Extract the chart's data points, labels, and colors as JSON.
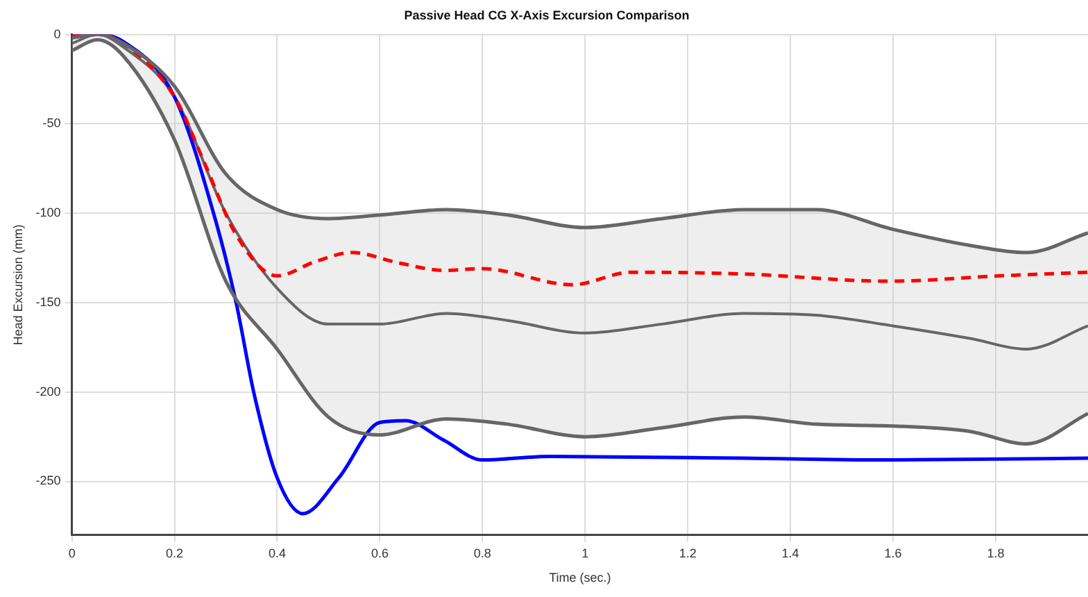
{
  "chart_data": {
    "type": "line",
    "title": "Passive Head CG X-Axis Excursion Comparison",
    "xlabel": "Time (sec.)",
    "ylabel": "Head Excursion (mm)",
    "xlim": [
      0,
      1.98
    ],
    "xticks": [
      0,
      0.2,
      0.4,
      0.6,
      0.8,
      1,
      1.2,
      1.4,
      1.6,
      1.8
    ],
    "ylim": [
      -280,
      0
    ],
    "yticks": [
      -250,
      -200,
      -150,
      -100,
      -50,
      0
    ],
    "grid": true,
    "legend": false,
    "marker": "none",
    "series": [
      {
        "color": "#666666",
        "line_style": "solid",
        "x": [
          0,
          0.05,
          0.1,
          0.2,
          0.3,
          0.4,
          0.5,
          0.6,
          0.73,
          0.85,
          1.0,
          1.15,
          1.31,
          1.45,
          1.6,
          1.75,
          1.86,
          1.98
        ],
        "values": [
          -5,
          0,
          -7,
          -35,
          -100,
          -142,
          -162,
          -162,
          -156,
          -160,
          -167,
          -162,
          -156,
          -157,
          -163,
          -170,
          -176,
          -163
        ],
        "lower": [
          -9,
          -3,
          -12,
          -59,
          -138,
          -176,
          -214,
          -224,
          -215,
          -218,
          -225,
          -220,
          -214,
          -218,
          -219,
          -222,
          -229,
          -212
        ],
        "upper": [
          -2,
          0,
          -5,
          -29,
          -78,
          -98,
          -103,
          -101,
          -98,
          -101,
          -108,
          -103,
          -98,
          -98,
          -109,
          -118,
          -122,
          -111
        ]
      },
      {
        "color": "#666666",
        "line_style": "solid",
        "x": [
          0,
          0.05,
          0.1,
          0.2,
          0.3,
          0.4,
          0.5,
          0.6,
          0.73,
          0.85,
          1.0,
          1.15,
          1.31,
          1.45,
          1.6,
          1.75,
          1.86,
          1.98
        ],
        "values": [
          -9,
          -3,
          -12,
          -59,
          -138,
          -176,
          -214,
          -224,
          -215,
          -218,
          -225,
          -220,
          -214,
          -218,
          -219,
          -222,
          -229,
          -212
        ]
      },
      {
        "color": "#666666",
        "line_style": "solid",
        "x": [
          0,
          0.05,
          0.1,
          0.2,
          0.3,
          0.4,
          0.5,
          0.6,
          0.73,
          0.85,
          1.0,
          1.15,
          1.31,
          1.45,
          1.6,
          1.75,
          1.86,
          1.98
        ],
        "values": [
          -2,
          0,
          -5,
          -29,
          -78,
          -98,
          -103,
          -101,
          -98,
          -101,
          -108,
          -103,
          -98,
          -98,
          -109,
          -118,
          -122,
          -111
        ]
      },
      {
        "color": "#ff0000",
        "line_style": "dashed",
        "x": [
          0,
          0.05,
          0.1,
          0.2,
          0.26,
          0.32,
          0.4,
          0.475,
          0.545,
          0.64,
          0.725,
          0.8,
          0.975,
          1.09,
          1.31,
          1.59,
          1.81,
          1.98
        ],
        "values": [
          0,
          0,
          -5,
          -35,
          -73,
          -112,
          -135,
          -127,
          -122,
          -128,
          -132,
          -131,
          -140,
          -133,
          -134,
          -138,
          -135,
          -133
        ]
      },
      {
        "color": "#0000ff",
        "line_style": "solid",
        "x": [
          0,
          0.05,
          0.1,
          0.2,
          0.28,
          0.32,
          0.355,
          0.4,
          0.45,
          0.52,
          0.6,
          0.65,
          0.725,
          0.8,
          0.93,
          1.31,
          1.6,
          1.98
        ],
        "values": [
          -1,
          0,
          -4,
          -35,
          -104,
          -150,
          -201,
          -248,
          -268,
          -248,
          -217,
          -216,
          -227,
          -238,
          -236,
          -237,
          -238,
          -237
        ]
      }
    ]
  }
}
